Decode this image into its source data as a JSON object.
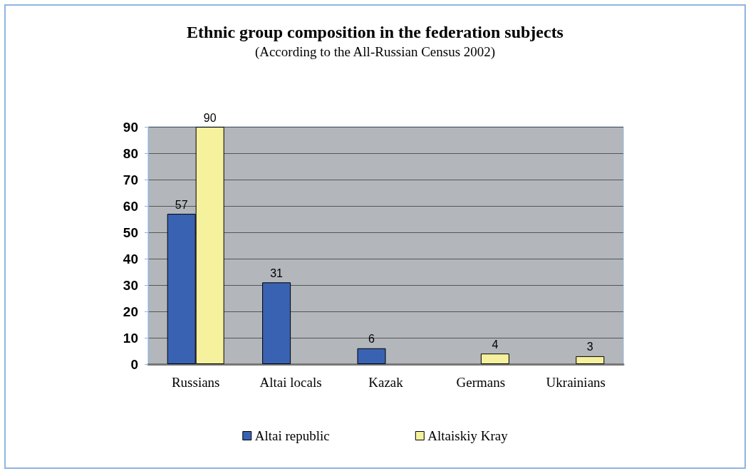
{
  "chart_data": {
    "type": "bar",
    "title": "Ethnic group composition in the federation subjects",
    "subtitle": "(According to the All-Russian Census 2002)",
    "categories": [
      "Russians",
      "Altai locals",
      "Kazak",
      "Germans",
      "Ukrainians"
    ],
    "series": [
      {
        "name": "Altai republic",
        "color": "#3a62b2",
        "values": [
          57,
          31,
          6,
          null,
          null
        ]
      },
      {
        "name": "Altaiskiy Kray",
        "color": "#f6f19c",
        "values": [
          90,
          null,
          null,
          4,
          3
        ]
      }
    ],
    "ylim": [
      0,
      90
    ],
    "yticks": [
      0,
      10,
      20,
      30,
      40,
      50,
      60,
      70,
      80,
      90
    ],
    "grid": "y",
    "legend": "bottom",
    "data_labels": true
  }
}
